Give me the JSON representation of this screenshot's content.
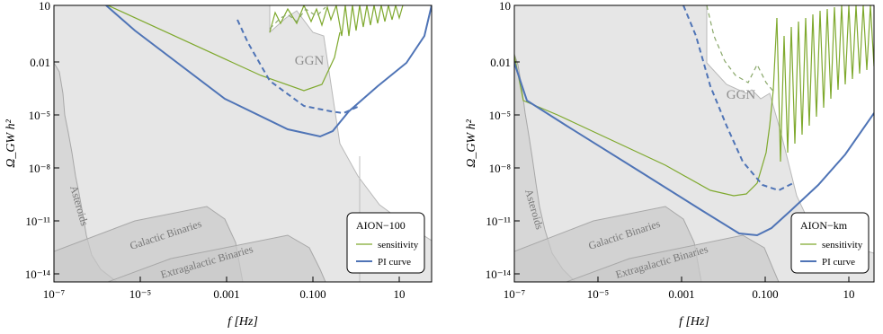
{
  "colors": {
    "sensitivity": "#7fa92e",
    "pi_curve": "#4f74b6",
    "foreground_fill": "#e6e6e6",
    "foreground_fill_dark": "#c9c9c9",
    "foreground_edge": "#a8a8a8",
    "ggn_text": "#8f8f8f",
    "inner_label": "#777777"
  },
  "chart_data": [
    {
      "type": "line",
      "xlabel": "f [Hz]",
      "ylabel": "Ω_GW h²",
      "x_scale": "log",
      "y_scale": "log",
      "xlim": [
        1e-07,
        200
      ],
      "ylim": [
        1e-15,
        10
      ],
      "x_ticks": [
        {
          "v": 1e-07,
          "label": "10⁻⁷"
        },
        {
          "v": 1e-05,
          "label": "10⁻⁵"
        },
        {
          "v": 0.001,
          "label": "0.001"
        },
        {
          "v": 0.1,
          "label": "0.100"
        },
        {
          "v": 10,
          "label": "10"
        }
      ],
      "y_ticks": [
        {
          "v": 1e-14,
          "label": "10⁻¹⁴"
        },
        {
          "v": 1e-11,
          "label": "10⁻¹¹"
        },
        {
          "v": 1e-08,
          "label": "10⁻⁸"
        },
        {
          "v": 1e-05,
          "label": "10⁻⁵"
        },
        {
          "v": 0.01,
          "label": "0.01"
        },
        {
          "v": 10,
          "label": "10"
        }
      ],
      "legend": {
        "position": "bottom-right",
        "title": "AION−100",
        "entries": [
          {
            "label": "sensitivity",
            "series": "sensitivity"
          },
          {
            "label": "PI curve",
            "series": "pi_curve"
          }
        ]
      },
      "annotations": [
        "GGN",
        "Asteroids",
        "Galactic Binaries",
        "Extragalactic Binaries"
      ],
      "series": [
        {
          "name": "sensitivity",
          "x": [
            1e-06,
            0.0001,
            0.01,
            0.05,
            0.08,
            0.15,
            0.3
          ],
          "y": [
            10,
            1,
            0.03,
            0.005,
            0.0015,
            0.003,
            0.03
          ],
          "upper_branch_start": 0.3
        },
        {
          "name": "PI curve",
          "x": [
            1e-06,
            1e-05,
            0.0001,
            0.001,
            0.01,
            0.05,
            0.2,
            0.5,
            1,
            5,
            50,
            200
          ],
          "y": [
            10,
            0.05,
            0.001,
            5e-05,
            3e-06,
            4e-07,
            3e-07,
            2e-06,
            1e-05,
            0.001,
            0.3,
            10
          ]
        },
        {
          "name": "dashed extension",
          "x": [
            0.1,
            1,
            1.5,
            3
          ],
          "y": [
            1e-05,
            1e-05,
            0.003,
            10
          ]
        }
      ]
    },
    {
      "type": "line",
      "xlabel": "f [Hz]",
      "ylabel": "Ω_GW h²",
      "x_scale": "log",
      "y_scale": "log",
      "xlim": [
        1e-07,
        200
      ],
      "ylim": [
        1e-15,
        10
      ],
      "x_ticks": [
        {
          "v": 1e-07,
          "label": "10⁻⁷"
        },
        {
          "v": 1e-05,
          "label": "10⁻⁵"
        },
        {
          "v": 0.001,
          "label": "0.001"
        },
        {
          "v": 0.1,
          "label": "0.100"
        },
        {
          "v": 10,
          "label": "10"
        }
      ],
      "y_ticks": [
        {
          "v": 1e-14,
          "label": "10⁻¹⁴"
        },
        {
          "v": 1e-11,
          "label": "10⁻¹¹"
        },
        {
          "v": 1e-08,
          "label": "10⁻⁸"
        },
        {
          "v": 1e-05,
          "label": "10⁻⁵"
        },
        {
          "v": 0.01,
          "label": "0.01"
        },
        {
          "v": 10,
          "label": "10"
        }
      ],
      "legend": {
        "position": "bottom-right",
        "title": "AION−km",
        "entries": [
          {
            "label": "sensitivity",
            "series": "sensitivity"
          },
          {
            "label": "PI curve",
            "series": "pi_curve"
          }
        ]
      },
      "annotations": [
        "GGN",
        "Asteroids",
        "Galactic Binaries",
        "Extragalactic Binaries"
      ],
      "series": [
        {
          "name": "sensitivity",
          "x": [
            1e-07,
            1e-06,
            0.0001,
            0.01,
            0.05,
            0.08,
            0.2
          ],
          "y": [
            0.1,
            1e-05,
            5e-07,
            2e-08,
            5e-10,
            3e-10,
            1e-09
          ]
        },
        {
          "name": "PI curve",
          "x": [
            1e-07,
            1e-06,
            1e-05,
            0.0001,
            0.001,
            0.01,
            0.05,
            0.1,
            1,
            10,
            200
          ],
          "y": [
            0.1,
            2e-05,
            5e-07,
            2e-08,
            1e-09,
            2e-11,
            3e-12,
            3e-12,
            1e-09,
            5e-07,
            0.0005
          ]
        },
        {
          "name": "dashed extension",
          "x": [
            0.01,
            0.1,
            0.3,
            1,
            3
          ],
          "y": [
            1e-10,
            1e-09,
            1e-08,
            0.0001,
            10
          ]
        }
      ]
    }
  ]
}
